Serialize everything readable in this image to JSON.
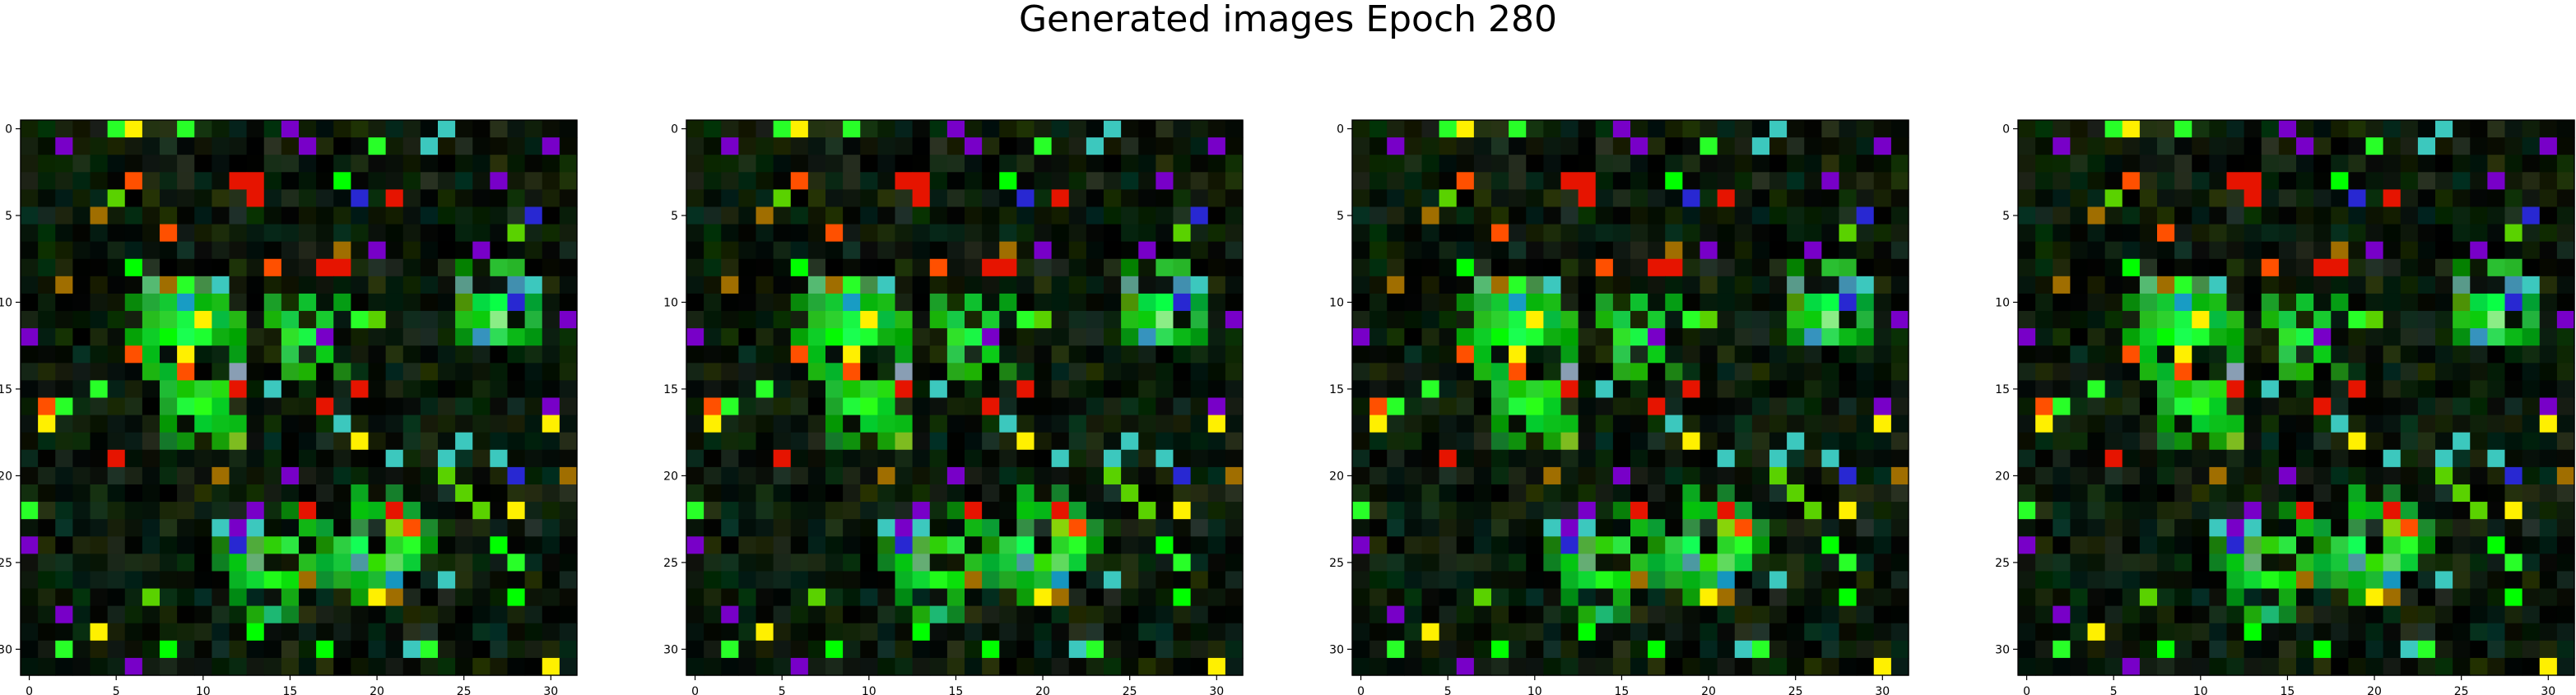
{
  "figure": {
    "title": "Generated images Epoch 280",
    "background": "#ffffff",
    "frame_color": "#000000"
  },
  "chart_data": [
    {
      "type": "heatmap",
      "grid_size": [
        32,
        32
      ],
      "xlim": [
        -0.5,
        31.5
      ],
      "ylim": [
        31.5,
        -0.5
      ],
      "xticks": [
        0,
        5,
        10,
        15,
        20,
        25,
        30
      ],
      "yticks": [
        0,
        5,
        10,
        15,
        20,
        25,
        30
      ],
      "xtick_labels": [
        "0",
        "5",
        "10",
        "15",
        "20",
        "25",
        "30"
      ],
      "ytick_labels": [
        "0",
        "5",
        "10",
        "15",
        "20",
        "25",
        "30"
      ],
      "xlabel": "",
      "ylabel": "",
      "grid": false,
      "pixel_content": "dark background with scattered bright green, lime, teal, blue, purple, red and orange pixels; green blobs around rows 8-16 and 20-31",
      "seed": 280
    },
    {
      "type": "heatmap",
      "grid_size": [
        32,
        32
      ],
      "xlim": [
        -0.5,
        31.5
      ],
      "ylim": [
        31.5,
        -0.5
      ],
      "xticks": [
        0,
        5,
        10,
        15,
        20,
        25,
        30
      ],
      "yticks": [
        0,
        5,
        10,
        15,
        20,
        25,
        30
      ],
      "xtick_labels": [
        "0",
        "5",
        "10",
        "15",
        "20",
        "25",
        "30"
      ],
      "ytick_labels": [
        "0",
        "5",
        "10",
        "15",
        "20",
        "25",
        "30"
      ],
      "xlabel": "",
      "ylabel": "",
      "grid": false,
      "pixel_content": "same pattern as panel 1",
      "seed": 280
    },
    {
      "type": "heatmap",
      "grid_size": [
        32,
        32
      ],
      "xlim": [
        -0.5,
        31.5
      ],
      "ylim": [
        31.5,
        -0.5
      ],
      "xticks": [
        0,
        5,
        10,
        15,
        20,
        25,
        30
      ],
      "yticks": [
        0,
        5,
        10,
        15,
        20,
        25,
        30
      ],
      "xtick_labels": [
        "0",
        "5",
        "10",
        "15",
        "20",
        "25",
        "30"
      ],
      "ytick_labels": [
        "0",
        "5",
        "10",
        "15",
        "20",
        "25",
        "30"
      ],
      "xlabel": "",
      "ylabel": "",
      "grid": false,
      "pixel_content": "same pattern as panel 1",
      "seed": 280
    },
    {
      "type": "heatmap",
      "grid_size": [
        32,
        32
      ],
      "xlim": [
        -0.5,
        31.5
      ],
      "ylim": [
        31.5,
        -0.5
      ],
      "xticks": [
        0,
        5,
        10,
        15,
        20,
        25,
        30
      ],
      "yticks": [
        0,
        5,
        10,
        15,
        20,
        25,
        30
      ],
      "xtick_labels": [
        "0",
        "5",
        "10",
        "15",
        "20",
        "25",
        "30"
      ],
      "ytick_labels": [
        "0",
        "5",
        "10",
        "15",
        "20",
        "25",
        "30"
      ],
      "xlabel": "",
      "ylabel": "",
      "grid": false,
      "pixel_content": "same pattern as panel 1",
      "seed": 280
    }
  ]
}
